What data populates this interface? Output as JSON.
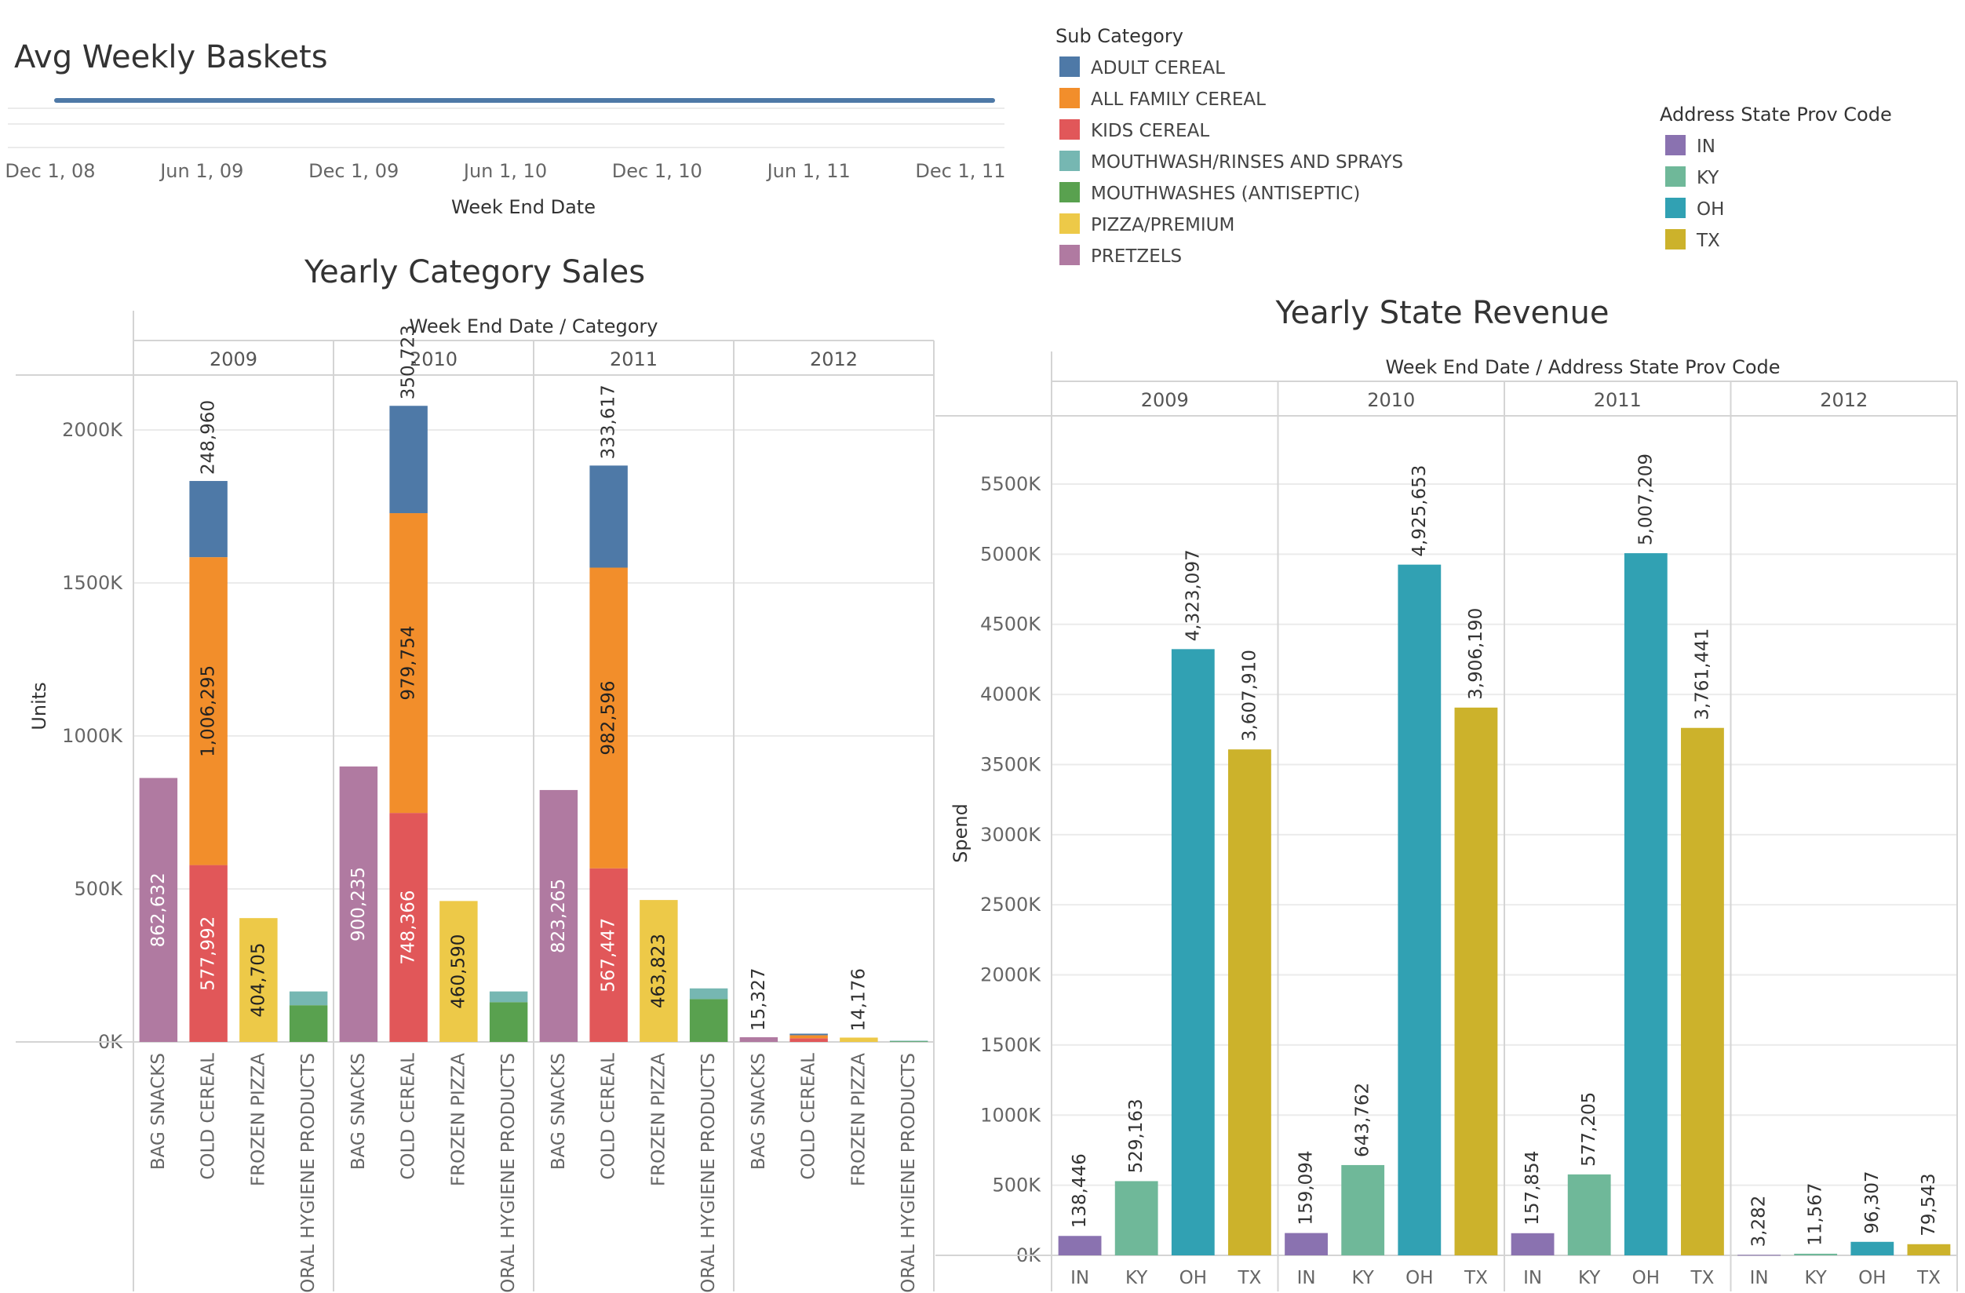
{
  "top_chart": {
    "title": "Avg Weekly Baskets",
    "x_label": "Week End Date",
    "x_ticks": [
      "Dec 1, 08",
      "Jun 1, 09",
      "Dec 1, 09",
      "Jun 1, 10",
      "Dec 1, 10",
      "Jun 1, 11",
      "Dec 1, 11"
    ],
    "line_color": "#4e79a7"
  },
  "legend_subcategory": {
    "title": "Sub Category",
    "items": [
      {
        "label": "ADULT CEREAL",
        "color": "#4e79a7"
      },
      {
        "label": "ALL FAMILY CEREAL",
        "color": "#f28e2b"
      },
      {
        "label": "KIDS CEREAL",
        "color": "#e15759"
      },
      {
        "label": "MOUTHWASH/RINSES AND SPRAYS",
        "color": "#76b7b2"
      },
      {
        "label": "MOUTHWASHES (ANTISEPTIC)",
        "color": "#59a14f"
      },
      {
        "label": "PIZZA/PREMIUM",
        "color": "#edc948"
      },
      {
        "label": "PRETZELS",
        "color": "#b07aa1"
      }
    ]
  },
  "legend_state": {
    "title": "Address State Prov Code",
    "items": [
      {
        "label": "IN",
        "color": "#8a72b0"
      },
      {
        "label": "KY",
        "color": "#6fb899"
      },
      {
        "label": "OH",
        "color": "#31a1b3"
      },
      {
        "label": "TX",
        "color": "#ccb22b"
      }
    ]
  },
  "chart_data": [
    {
      "type": "bar",
      "title": "Yearly Category Sales",
      "column_header": "Week End Date / Category",
      "ylabel": "Units",
      "y_ticks": [
        "0K",
        "500K",
        "1000K",
        "1500K",
        "2000K"
      ],
      "ylim": [
        0,
        2000000
      ],
      "years": [
        "2009",
        "2010",
        "2011",
        "2012"
      ],
      "categories": [
        "BAG SNACKS",
        "COLD CEREAL",
        "FROZEN PIZZA",
        "ORAL HYGIENE PRODUCTS"
      ],
      "stacked": true,
      "stacks": [
        [
          [
            {
              "sub": "PRETZELS",
              "value": 862632,
              "label": "862,632"
            }
          ],
          [
            {
              "sub": "KIDS CEREAL",
              "value": 577992,
              "label": "577,992"
            },
            {
              "sub": "ALL FAMILY CEREAL",
              "value": 1006295,
              "label": "1,006,295"
            },
            {
              "sub": "ADULT CEREAL",
              "value": 248960,
              "label": "248,960"
            }
          ],
          [
            {
              "sub": "PIZZA/PREMIUM",
              "value": 404705,
              "label": "404,705"
            }
          ],
          [
            {
              "sub": "MOUTHWASHES (ANTISEPTIC)",
              "value": 120000
            },
            {
              "sub": "MOUTHWASH/RINSES AND SPRAYS",
              "value": 45000
            }
          ]
        ],
        [
          [
            {
              "sub": "PRETZELS",
              "value": 900235,
              "label": "900,235"
            }
          ],
          [
            {
              "sub": "KIDS CEREAL",
              "value": 748366,
              "label": "748,366"
            },
            {
              "sub": "ALL FAMILY CEREAL",
              "value": 979754,
              "label": "979,754"
            },
            {
              "sub": "ADULT CEREAL",
              "value": 350723,
              "label": "350,723"
            }
          ],
          [
            {
              "sub": "PIZZA/PREMIUM",
              "value": 460590,
              "label": "460,590"
            }
          ],
          [
            {
              "sub": "MOUTHWASHES (ANTISEPTIC)",
              "value": 130000
            },
            {
              "sub": "MOUTHWASH/RINSES AND SPRAYS",
              "value": 35000
            }
          ]
        ],
        [
          [
            {
              "sub": "PRETZELS",
              "value": 823265,
              "label": "823,265"
            }
          ],
          [
            {
              "sub": "KIDS CEREAL",
              "value": 567447,
              "label": "567,447"
            },
            {
              "sub": "ALL FAMILY CEREAL",
              "value": 982596,
              "label": "982,596"
            },
            {
              "sub": "ADULT CEREAL",
              "value": 333617,
              "label": "333,617"
            }
          ],
          [
            {
              "sub": "PIZZA/PREMIUM",
              "value": 463823,
              "label": "463,823"
            }
          ],
          [
            {
              "sub": "MOUTHWASHES (ANTISEPTIC)",
              "value": 140000
            },
            {
              "sub": "MOUTHWASH/RINSES AND SPRAYS",
              "value": 35000
            }
          ]
        ],
        [
          [
            {
              "sub": "PRETZELS",
              "value": 15327,
              "label": "15,327"
            }
          ],
          [
            {
              "sub": "KIDS CEREAL",
              "value": 12000
            },
            {
              "sub": "ALL FAMILY CEREAL",
              "value": 10000
            },
            {
              "sub": "ADULT CEREAL",
              "value": 5000
            }
          ],
          [
            {
              "sub": "PIZZA/PREMIUM",
              "value": 14176,
              "label": "14,176"
            }
          ],
          [
            {
              "sub": "MOUTHWASHES (ANTISEPTIC)",
              "value": 2500
            },
            {
              "sub": "MOUTHWASH/RINSES AND SPRAYS",
              "value": 1500
            }
          ]
        ]
      ]
    },
    {
      "type": "bar",
      "title": "Yearly State Revenue",
      "column_header": "Week End Date / Address State Prov Code",
      "ylabel": "Spend",
      "y_ticks": [
        "0K",
        "500K",
        "1000K",
        "1500K",
        "2000K",
        "2500K",
        "3000K",
        "3500K",
        "4000K",
        "4500K",
        "5000K",
        "5500K"
      ],
      "ylim": [
        0,
        5500000
      ],
      "years": [
        "2009",
        "2010",
        "2011",
        "2012"
      ],
      "categories": [
        "IN",
        "KY",
        "OH",
        "TX"
      ],
      "values": [
        [
          138446,
          529163,
          4323097,
          3607910
        ],
        [
          159094,
          643762,
          4925653,
          3906190
        ],
        [
          157854,
          577205,
          5007209,
          3761441
        ],
        [
          3282,
          11567,
          96307,
          79543
        ]
      ],
      "labels": [
        [
          "138,446",
          "529,163",
          "4,323,097",
          "3,607,910"
        ],
        [
          "159,094",
          "643,762",
          "4,925,653",
          "3,906,190"
        ],
        [
          "157,854",
          "577,205",
          "5,007,209",
          "3,761,441"
        ],
        [
          "3,282",
          "11,567",
          "96,307",
          "79,543"
        ]
      ]
    }
  ]
}
